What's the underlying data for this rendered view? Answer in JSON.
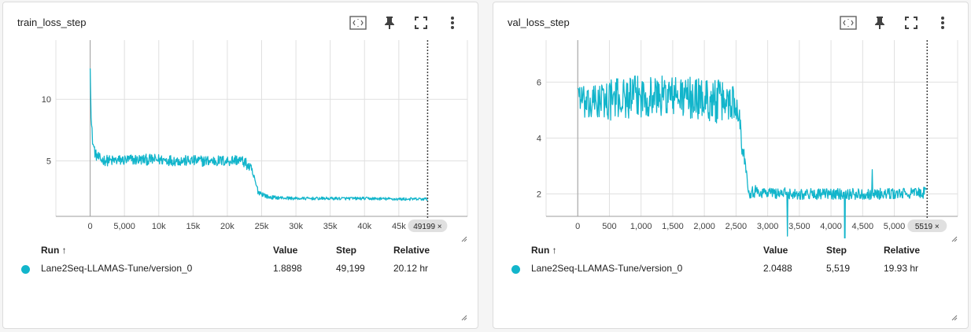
{
  "accent_color": "#12b5cb",
  "toolbar_icons": [
    "fit-domain-icon",
    "pin-icon",
    "fullscreen-icon",
    "more-vert-icon"
  ],
  "cards": [
    {
      "title": "train_loss_step",
      "marker_label": "49199 ×",
      "table": {
        "headers": {
          "run": "Run ↑",
          "value": "Value",
          "step": "Step",
          "relative": "Relative"
        },
        "row": {
          "run": "Lane2Seq-LLAMAS-Tune/version_0",
          "value": "1.8898",
          "step": "49,199",
          "relative": "20.12 hr"
        }
      }
    },
    {
      "title": "val_loss_step",
      "marker_label": "5519 ×",
      "table": {
        "headers": {
          "run": "Run ↑",
          "value": "Value",
          "step": "Step",
          "relative": "Relative"
        },
        "row": {
          "run": "Lane2Seq-LLAMAS-Tune/version_0",
          "value": "2.0488",
          "step": "5,519",
          "relative": "19.93 hr"
        }
      }
    }
  ],
  "chart_data": [
    {
      "type": "line",
      "title": "train_loss_step",
      "xlim": [
        -5000,
        55000
      ],
      "ylim": [
        0.5,
        14.8
      ],
      "grid": true,
      "x_ticks": [
        0,
        5000,
        10000,
        15000,
        20000,
        25000,
        30000,
        35000,
        40000,
        45000
      ],
      "x_tick_labels": [
        "0",
        "5,000",
        "10k",
        "15k",
        "20k",
        "25k",
        "30k",
        "35k",
        "40k",
        "45k"
      ],
      "y_ticks": [
        5,
        10
      ],
      "y_tick_labels": [
        "5",
        "10"
      ],
      "marker_step": 49199,
      "series": [
        {
          "x": [
            0,
            150,
            400,
            800,
            1500,
            3000,
            6000,
            10000,
            14000,
            18000,
            20000,
            21500,
            22500,
            23500,
            24500,
            26000,
            30000,
            35000,
            40000,
            45000,
            49199
          ],
          "y": [
            12.5,
            8.2,
            6.4,
            5.5,
            5.1,
            5.0,
            5.1,
            5.1,
            5.0,
            5.0,
            5.0,
            5.1,
            4.9,
            4.3,
            2.5,
            2.05,
            1.95,
            1.95,
            1.95,
            1.9,
            1.9
          ],
          "noise": [
            0.2,
            0.5,
            0.5,
            0.45,
            0.45,
            0.45,
            0.45,
            0.45,
            0.45,
            0.45,
            0.45,
            0.45,
            0.45,
            0.4,
            0.25,
            0.15,
            0.12,
            0.12,
            0.12,
            0.12,
            0.12
          ]
        }
      ]
    },
    {
      "type": "line",
      "title": "val_loss_step",
      "xlim": [
        -500,
        6000
      ],
      "ylim": [
        1.2,
        7.5
      ],
      "grid": true,
      "x_ticks": [
        0,
        500,
        1000,
        1500,
        2000,
        2500,
        3000,
        3500,
        4000,
        4500,
        5000
      ],
      "x_tick_labels": [
        "0",
        "500",
        "1,000",
        "1,500",
        "2,000",
        "2,500",
        "3,000",
        "3,500",
        "4,000",
        "4,500",
        "5,000"
      ],
      "y_ticks": [
        2,
        4,
        6
      ],
      "y_tick_labels": [
        "2",
        "4",
        "6"
      ],
      "marker_step": 5519,
      "series": [
        {
          "x": [
            0,
            20,
            80,
            150,
            300,
            600,
            1000,
            1500,
            2000,
            2200,
            2450,
            2550,
            2600,
            2650,
            2700,
            3000,
            3500,
            4000,
            4500,
            5000,
            5519
          ],
          "y": [
            5.9,
            5.6,
            5.3,
            5.1,
            5.3,
            5.4,
            5.5,
            5.5,
            5.4,
            5.3,
            5.3,
            5.0,
            3.5,
            3.2,
            2.1,
            2.05,
            2.0,
            2.0,
            2.0,
            2.0,
            2.05
          ],
          "noise": [
            0.4,
            0.5,
            0.6,
            0.6,
            0.7,
            0.75,
            0.75,
            0.75,
            0.75,
            0.8,
            0.7,
            0.4,
            0.3,
            0.3,
            0.25,
            0.2,
            0.2,
            0.2,
            0.2,
            0.2,
            0.2
          ]
        }
      ]
    }
  ]
}
